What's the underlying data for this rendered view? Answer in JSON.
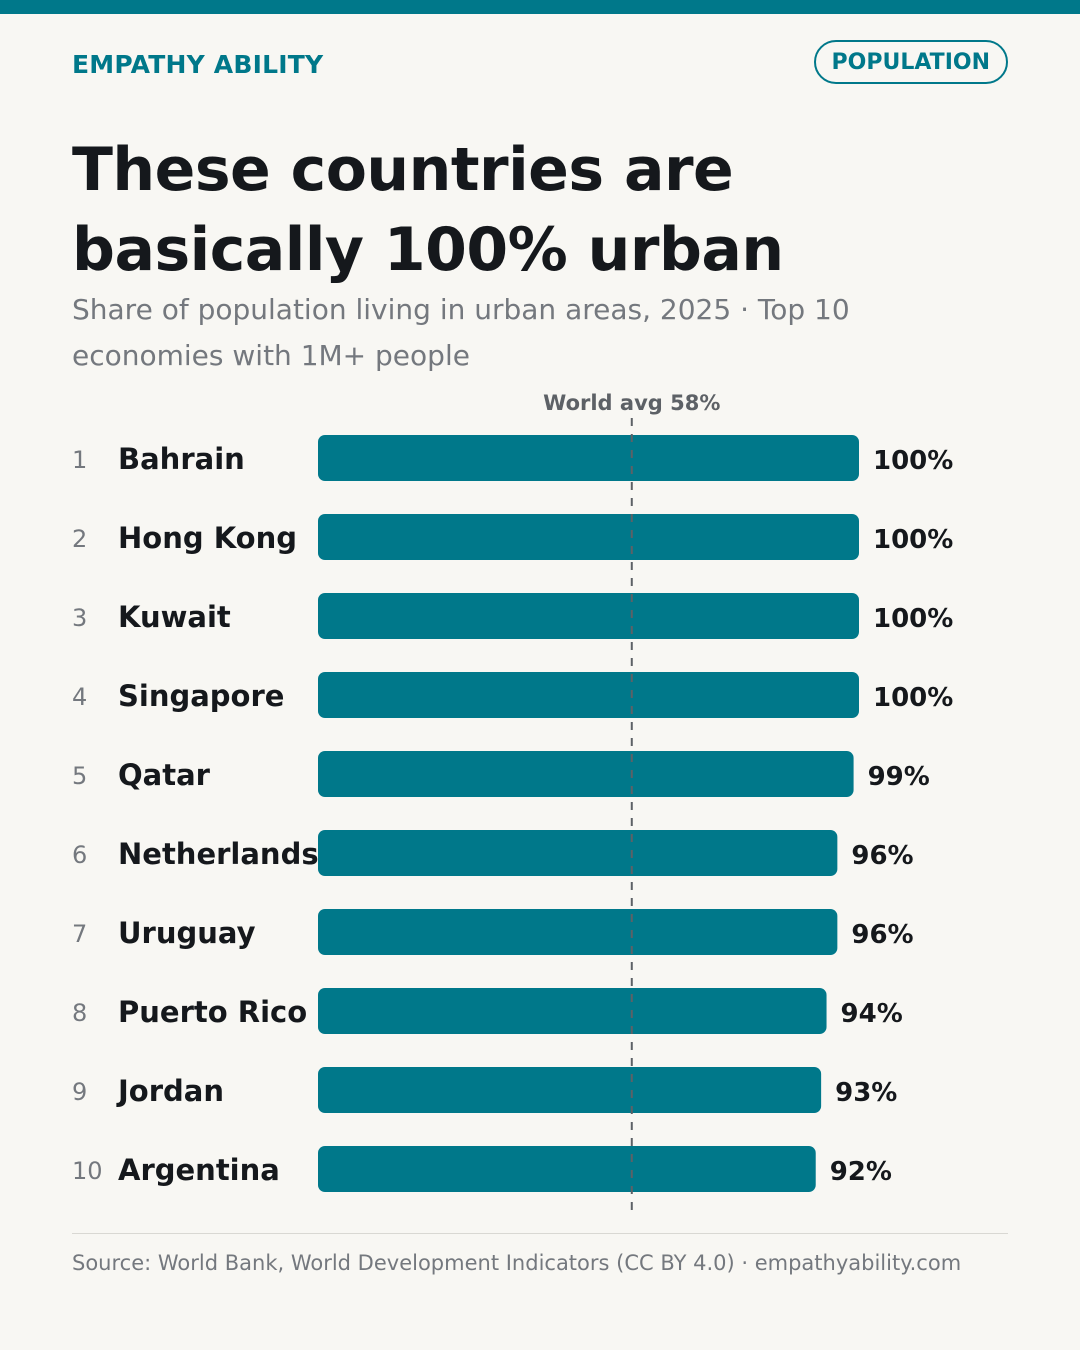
{
  "header": {
    "brand": "EMPATHY ABILITY",
    "badge": "POPULATION"
  },
  "chart_data": {
    "type": "bar",
    "orientation": "horizontal",
    "title": "These countries are basically 100% urban",
    "subtitle": "Share of population living in urban areas, 2025 · Top 10 economies with 1M+ people",
    "ranks": [
      "1",
      "2",
      "3",
      "4",
      "5",
      "6",
      "7",
      "8",
      "9",
      "10"
    ],
    "categories": [
      "Bahrain",
      "Hong Kong",
      "Kuwait",
      "Singapore",
      "Qatar",
      "Netherlands",
      "Uruguay",
      "Puerto Rico",
      "Jordan",
      "Argentina"
    ],
    "values": [
      100,
      100,
      100,
      100,
      99,
      96,
      96,
      94,
      93,
      92
    ],
    "value_labels": [
      "100%",
      "100%",
      "100%",
      "100%",
      "99%",
      "96%",
      "96%",
      "94%",
      "93%",
      "92%"
    ],
    "xlim": [
      0,
      100
    ],
    "reference_line": {
      "label": "World avg 58%",
      "value": 58
    },
    "bar_color": "#00788a",
    "reference_color": "#5d6166"
  },
  "footer": {
    "source": "Source: World Bank, World Development Indicators (CC BY 4.0) · empathyability.com"
  }
}
